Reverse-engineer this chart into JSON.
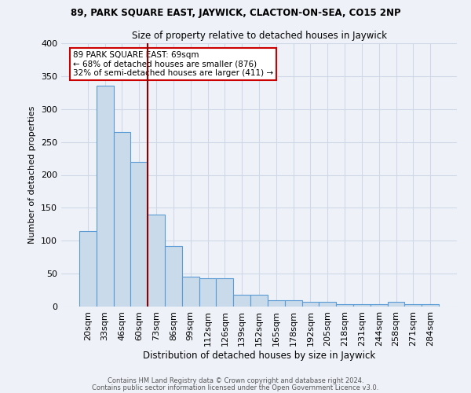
{
  "title1": "89, PARK SQUARE EAST, JAYWICK, CLACTON-ON-SEA, CO15 2NP",
  "title2": "Size of property relative to detached houses in Jaywick",
  "xlabel": "Distribution of detached houses by size in Jaywick",
  "ylabel": "Number of detached properties",
  "footer1": "Contains HM Land Registry data © Crown copyright and database right 2024.",
  "footer2": "Contains public sector information licensed under the Open Government Licence v3.0.",
  "bar_labels": [
    "20sqm",
    "33sqm",
    "46sqm",
    "60sqm",
    "73sqm",
    "86sqm",
    "99sqm",
    "112sqm",
    "126sqm",
    "139sqm",
    "152sqm",
    "165sqm",
    "178sqm",
    "192sqm",
    "205sqm",
    "218sqm",
    "231sqm",
    "244sqm",
    "258sqm",
    "271sqm",
    "284sqm"
  ],
  "bar_values": [
    115,
    335,
    265,
    220,
    140,
    92,
    45,
    43,
    43,
    18,
    18,
    9,
    9,
    7,
    7,
    4,
    4,
    4,
    7,
    3,
    3
  ],
  "bar_color": "#c9daea",
  "bar_edge_color": "#5b9bd5",
  "grid_color": "#d0d8e8",
  "background_color": "#eef2f8",
  "vline_pos": 3.5,
  "vline_color": "#8b0000",
  "annotation_title": "89 PARK SQUARE EAST: 69sqm",
  "annotation_line1": "← 68% of detached houses are smaller (876)",
  "annotation_line2": "32% of semi-detached houses are larger (411) →",
  "annotation_box_edge": "#cc0000",
  "annotation_box_face": "white",
  "ylim": [
    0,
    400
  ],
  "yticks": [
    0,
    50,
    100,
    150,
    200,
    250,
    300,
    350,
    400
  ]
}
